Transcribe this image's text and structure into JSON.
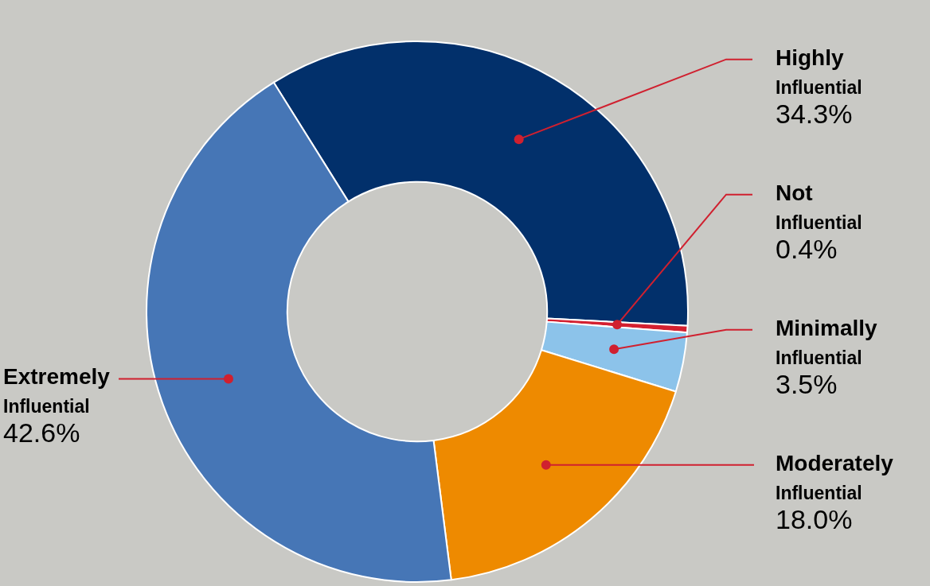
{
  "chart_data": {
    "type": "donut",
    "categories": [
      "Highly Influential",
      "Not Influential",
      "Minimally Influential",
      "Moderately Influential",
      "Extremely Influential"
    ],
    "values": [
      34.3,
      0.4,
      3.5,
      18.0,
      42.6
    ],
    "value_labels": [
      "34.3%",
      "0.4%",
      "3.5%",
      "18.0%",
      "42.6%"
    ],
    "colors": [
      "#02306b",
      "#d42030",
      "#8cc3ea",
      "#ee8a00",
      "#4676b6"
    ],
    "legend": false
  }
}
